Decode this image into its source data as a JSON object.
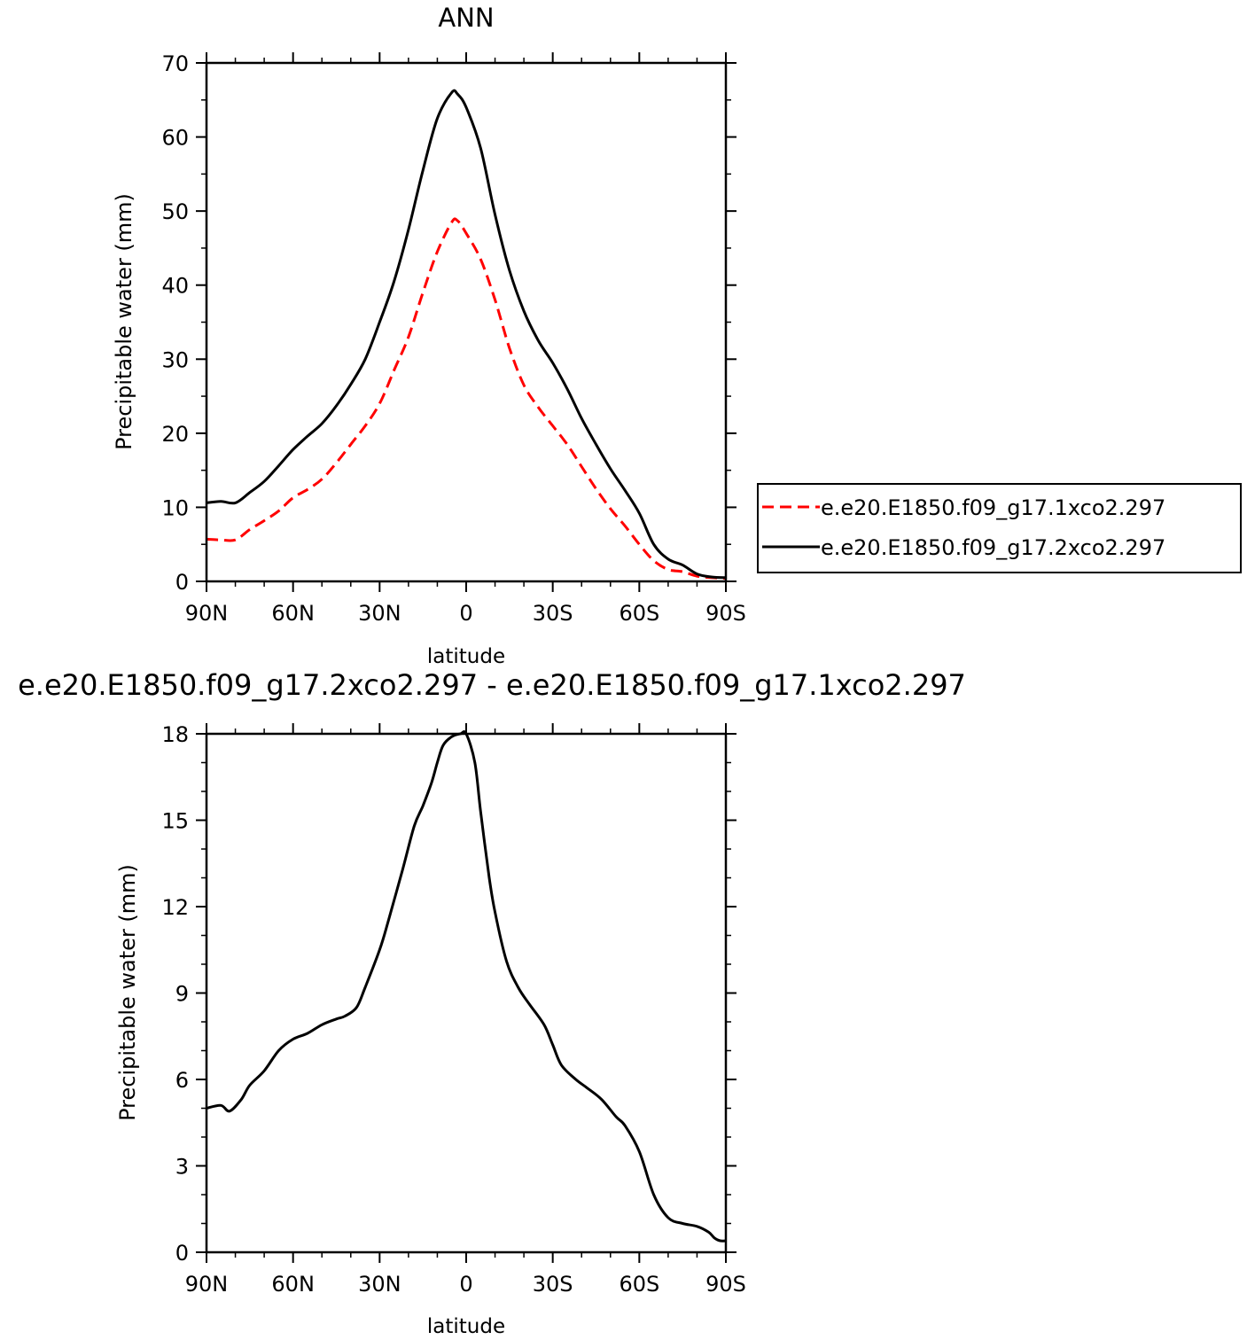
{
  "chart_data": [
    {
      "type": "line",
      "title": "ANN",
      "xlabel": "latitude",
      "ylabel": "Precipitable water (mm)",
      "x_ticks": [
        "90N",
        "60N",
        "30N",
        "0",
        "30S",
        "60S",
        "90S"
      ],
      "x_tick_values": [
        -90,
        -60,
        -30,
        0,
        30,
        60,
        90
      ],
      "y_ticks": [
        "0",
        "10",
        "20",
        "30",
        "40",
        "50",
        "60",
        "70"
      ],
      "y_tick_values": [
        0,
        10,
        20,
        30,
        40,
        50,
        60,
        70
      ],
      "xlim": [
        -90,
        90
      ],
      "ylim": [
        0,
        70
      ],
      "grid": false,
      "legend_position": "right",
      "x": [
        -90,
        -85,
        -80,
        -75,
        -70,
        -65,
        -60,
        -55,
        -50,
        -45,
        -40,
        -35,
        -30,
        -25,
        -20,
        -15,
        -10,
        -5,
        -3,
        0,
        5,
        10,
        15,
        20,
        25,
        30,
        35,
        40,
        45,
        50,
        55,
        60,
        65,
        70,
        75,
        80,
        85,
        90
      ],
      "series": [
        {
          "name": "e.e20.E1850.f09_g17.1xco2.297",
          "color": "#ff0000",
          "dash": "dashed",
          "values": [
            5.7,
            5.6,
            5.6,
            7.0,
            8.2,
            9.5,
            11.3,
            12.4,
            13.8,
            16.0,
            18.5,
            21.0,
            24.0,
            28.5,
            33.0,
            39.0,
            44.5,
            48.5,
            48.7,
            47.0,
            43.5,
            38.0,
            31.5,
            26.5,
            23.5,
            21.0,
            18.5,
            15.5,
            12.5,
            9.8,
            7.5,
            5.0,
            2.8,
            1.6,
            1.3,
            0.7,
            0.5,
            0.4
          ]
        },
        {
          "name": "e.e20.E1850.f09_g17.2xco2.297",
          "color": "#000000",
          "dash": "solid",
          "values": [
            10.6,
            10.8,
            10.6,
            12.0,
            13.5,
            15.6,
            17.8,
            19.6,
            21.3,
            23.7,
            26.6,
            30.0,
            35.0,
            40.5,
            47.5,
            55.5,
            62.5,
            66.0,
            65.8,
            64.0,
            58.5,
            49.5,
            42.0,
            36.5,
            32.5,
            29.5,
            26.0,
            22.0,
            18.5,
            15.2,
            12.3,
            9.2,
            5.0,
            3.0,
            2.2,
            1.0,
            0.6,
            0.5
          ]
        }
      ]
    },
    {
      "type": "line",
      "title": "e.e20.E1850.f09_g17.2xco2.297 - e.e20.E1850.f09_g17.1xco2.297",
      "xlabel": "latitude",
      "ylabel": "Precipitable water (mm)",
      "x_ticks": [
        "90N",
        "60N",
        "30N",
        "0",
        "30S",
        "60S",
        "90S"
      ],
      "x_tick_values": [
        -90,
        -60,
        -30,
        0,
        30,
        60,
        90
      ],
      "y_ticks": [
        "0",
        "3",
        "6",
        "9",
        "12",
        "15",
        "18"
      ],
      "y_tick_values": [
        0,
        3,
        6,
        9,
        12,
        15,
        18
      ],
      "xlim": [
        -90,
        90
      ],
      "ylim": [
        0,
        18
      ],
      "grid": false,
      "x": [
        -90,
        -85,
        -82,
        -78,
        -75,
        -70,
        -65,
        -60,
        -55,
        -50,
        -45,
        -42,
        -38,
        -35,
        -30,
        -27,
        -22,
        -18,
        -15,
        -12,
        -10,
        -8,
        -5,
        -2,
        0,
        3,
        5,
        8,
        10,
        14,
        18,
        22,
        27,
        30,
        33,
        38,
        42,
        47,
        52,
        55,
        60,
        65,
        70,
        75,
        80,
        84,
        86,
        88,
        90
      ],
      "series": [
        {
          "name": "",
          "color": "#000000",
          "dash": "solid",
          "values": [
            5.0,
            5.1,
            4.9,
            5.3,
            5.8,
            6.3,
            7.0,
            7.4,
            7.6,
            7.9,
            8.1,
            8.2,
            8.5,
            9.2,
            10.5,
            11.5,
            13.3,
            14.8,
            15.5,
            16.3,
            17.0,
            17.6,
            17.9,
            18.0,
            18.0,
            17.0,
            15.3,
            13.0,
            11.8,
            10.1,
            9.2,
            8.6,
            7.9,
            7.2,
            6.5,
            6.0,
            5.7,
            5.3,
            4.7,
            4.4,
            3.5,
            2.0,
            1.2,
            1.0,
            0.9,
            0.7,
            0.5,
            0.4,
            0.4
          ]
        }
      ]
    }
  ]
}
